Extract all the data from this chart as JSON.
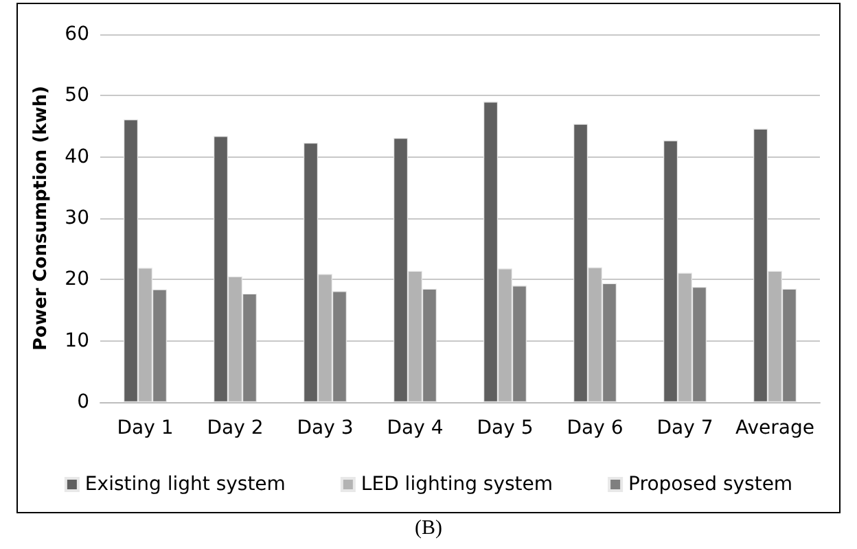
{
  "chart_data": {
    "type": "bar",
    "ylabel": "Power Consumption (kwh)",
    "categories": [
      "Day 1",
      "Day 2",
      "Day 3",
      "Day 4",
      "Day 5",
      "Day 6",
      "Day 7",
      "Average"
    ],
    "series": [
      {
        "name": "Existing light system",
        "color": "#5f5f5f",
        "values": [
          46.1,
          43.4,
          42.3,
          43.1,
          49.0,
          45.4,
          42.7,
          44.6
        ]
      },
      {
        "name": "LED lighting system",
        "color": "#b3b3b3",
        "values": [
          21.9,
          20.5,
          20.9,
          21.4,
          21.8,
          22.0,
          21.1,
          21.4
        ]
      },
      {
        "name": "Proposed system",
        "color": "#7f7f7f",
        "values": [
          18.4,
          17.7,
          18.1,
          18.5,
          19.0,
          19.4,
          18.8,
          18.5
        ]
      }
    ],
    "ylim": [
      0,
      60
    ],
    "yticks": [
      0,
      10,
      20,
      30,
      40,
      50,
      60
    ],
    "grid": "y",
    "legend": "bottom",
    "annotations": [
      "(B)"
    ]
  }
}
